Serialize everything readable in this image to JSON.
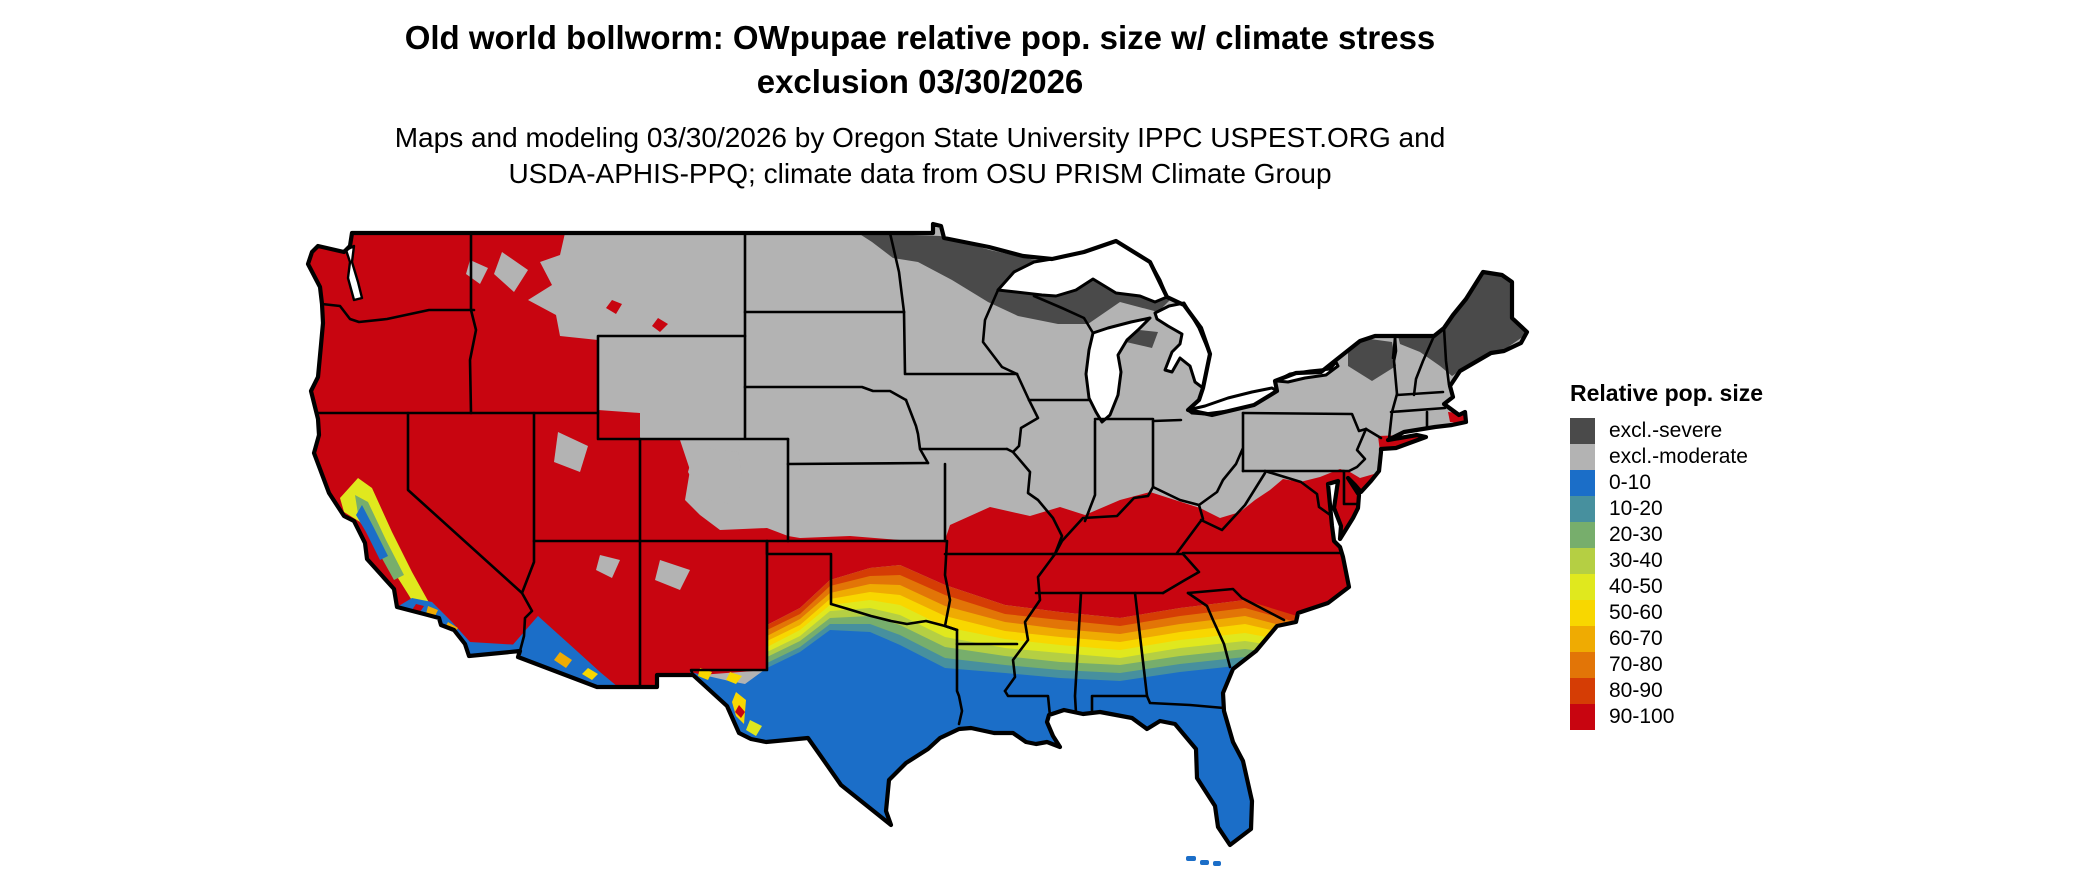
{
  "title": {
    "line1": "Old world bollworm: OWpupae relative pop. size w/ climate stress",
    "line2": "exclusion 03/30/2026"
  },
  "subtitle": {
    "line1": "Maps and modeling 03/30/2026 by Oregon State University IPPC USPEST.ORG and",
    "line2": "USDA-APHIS-PPQ; climate data from OSU PRISM Climate Group"
  },
  "legend": {
    "title": "Relative pop. size",
    "items": [
      {
        "label": "excl.-severe",
        "color": "#4a4a4a"
      },
      {
        "label": "excl.-moderate",
        "color": "#b3b3b3"
      },
      {
        "label": "0-10",
        "color": "#1b6ec8"
      },
      {
        "label": "10-20",
        "color": "#47909e"
      },
      {
        "label": "20-30",
        "color": "#77ae6c"
      },
      {
        "label": "30-40",
        "color": "#b5cf43"
      },
      {
        "label": "40-50",
        "color": "#e0e81e"
      },
      {
        "label": "50-60",
        "color": "#f8d700"
      },
      {
        "label": "60-70",
        "color": "#efab02"
      },
      {
        "label": "70-80",
        "color": "#e27507"
      },
      {
        "label": "80-90",
        "color": "#d53d05"
      },
      {
        "label": "90-100",
        "color": "#c80510"
      }
    ]
  },
  "map": {
    "region": "Continental United States",
    "type": "raster choropleth with state borders",
    "measure": "OWpupae relative population size with climate stress exclusion",
    "border_color": "#000000",
    "water_color": "#ffffff",
    "pattern_summary": {
      "excl_severe_areas": "northern Minnesota, northern Wisconsin, upper Michigan, Adirondacks NY, northern New England / Maine",
      "excl_moderate_areas": "northern plains, upper Midwest, Great Lakes states, Northeast interior, Wyoming, Montana east, central Colorado mountains",
      "90_100_areas": "Pacific Northwest, California interior, Great Basin, Southwest, southern Plains fringe, mid-South (KY/TN/VA/NC), mid-Atlantic coast",
      "0_10_areas": "southern Texas, Gulf Coast, Florida, southern Louisiana/Mississippi/Alabama, southeast Georgia, southwest Arizona, southern California",
      "transition": "orange-yellow-green-teal bands across northern Texas, Oklahoma, the Gulf states and central Georgia/South Carolina"
    }
  }
}
